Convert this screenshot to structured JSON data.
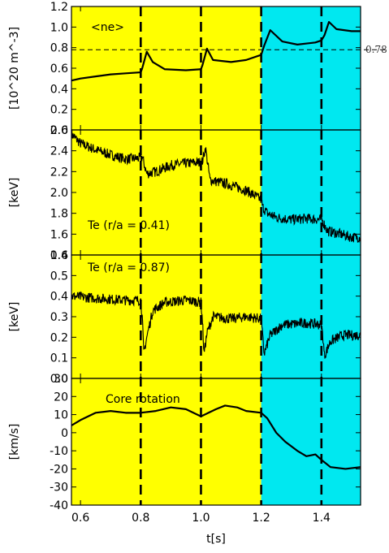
{
  "chart_data": {
    "type": "line",
    "xlabel": "t[s]",
    "xlim": [
      0.57,
      1.53
    ],
    "xticks": [
      "0.6",
      "0.8",
      "1.0",
      "1.2",
      "1.4"
    ],
    "phase_boundaries": [
      0.8,
      1.0,
      1.2,
      1.4
    ],
    "background_regions": [
      {
        "x": [
          0.57,
          1.2
        ],
        "color": "#ffff00"
      },
      {
        "x": [
          1.2,
          1.53
        ],
        "color": "#00e8f0"
      }
    ],
    "panels": [
      {
        "ylabel": "[10^20 m^-3]",
        "ylim": [
          0.0,
          1.2
        ],
        "yticks": [
          "0.0",
          "0.2",
          "0.4",
          "0.6",
          "0.8",
          "1.0",
          "1.2"
        ],
        "annotation": "<ne>",
        "reference_line": {
          "y": 0.78,
          "label": "0.78"
        },
        "noise": 0,
        "series": [
          {
            "name": "<ne>",
            "points": [
              [
                0.57,
                0.48
              ],
              [
                0.6,
                0.5
              ],
              [
                0.65,
                0.52
              ],
              [
                0.7,
                0.54
              ],
              [
                0.75,
                0.55
              ],
              [
                0.8,
                0.56
              ],
              [
                0.805,
                0.6
              ],
              [
                0.82,
                0.76
              ],
              [
                0.84,
                0.66
              ],
              [
                0.88,
                0.59
              ],
              [
                0.95,
                0.58
              ],
              [
                1.0,
                0.59
              ],
              [
                1.005,
                0.63
              ],
              [
                1.02,
                0.79
              ],
              [
                1.04,
                0.68
              ],
              [
                1.1,
                0.66
              ],
              [
                1.15,
                0.68
              ],
              [
                1.2,
                0.73
              ],
              [
                1.21,
                0.82
              ],
              [
                1.23,
                0.97
              ],
              [
                1.27,
                0.86
              ],
              [
                1.32,
                0.83
              ],
              [
                1.38,
                0.85
              ],
              [
                1.4,
                0.87
              ],
              [
                1.41,
                0.92
              ],
              [
                1.425,
                1.05
              ],
              [
                1.45,
                0.98
              ],
              [
                1.5,
                0.96
              ],
              [
                1.53,
                0.96
              ]
            ]
          }
        ]
      },
      {
        "ylabel": "[keV]",
        "ylim": [
          1.4,
          2.6
        ],
        "yticks": [
          "1.4",
          "1.6",
          "1.8",
          "2.0",
          "2.2",
          "2.4",
          "2.6"
        ],
        "annotation": "Te (r/a = 0.41)",
        "noise": 0.05,
        "series": [
          {
            "name": "Te (r/a = 0.41)",
            "points": [
              [
                0.57,
                2.56
              ],
              [
                0.6,
                2.47
              ],
              [
                0.65,
                2.41
              ],
              [
                0.7,
                2.36
              ],
              [
                0.75,
                2.32
              ],
              [
                0.8,
                2.33
              ],
              [
                0.805,
                2.34
              ],
              [
                0.82,
                2.18
              ],
              [
                0.85,
                2.2
              ],
              [
                0.9,
                2.26
              ],
              [
                0.95,
                2.28
              ],
              [
                1.0,
                2.29
              ],
              [
                1.005,
                2.3
              ],
              [
                1.015,
                2.43
              ],
              [
                1.03,
                2.12
              ],
              [
                1.1,
                2.07
              ],
              [
                1.15,
                2.02
              ],
              [
                1.2,
                1.93
              ],
              [
                1.205,
                1.86
              ],
              [
                1.22,
                1.8
              ],
              [
                1.25,
                1.76
              ],
              [
                1.3,
                1.74
              ],
              [
                1.35,
                1.75
              ],
              [
                1.4,
                1.74
              ],
              [
                1.405,
                1.72
              ],
              [
                1.42,
                1.63
              ],
              [
                1.45,
                1.61
              ],
              [
                1.5,
                1.57
              ],
              [
                1.53,
                1.57
              ]
            ]
          }
        ]
      },
      {
        "ylabel": "[keV]",
        "ylim": [
          0.0,
          0.6
        ],
        "yticks": [
          "0.0",
          "0.1",
          "0.2",
          "0.3",
          "0.4",
          "0.5",
          "0.6"
        ],
        "annotation": "Te (r/a = 0.87)",
        "noise": 0.025,
        "series": [
          {
            "name": "Te (r/a = 0.87)",
            "points": [
              [
                0.57,
                0.4
              ],
              [
                0.65,
                0.39
              ],
              [
                0.75,
                0.38
              ],
              [
                0.8,
                0.38
              ],
              [
                0.805,
                0.3
              ],
              [
                0.81,
                0.12
              ],
              [
                0.82,
                0.2
              ],
              [
                0.84,
                0.33
              ],
              [
                0.88,
                0.37
              ],
              [
                0.95,
                0.38
              ],
              [
                1.0,
                0.37
              ],
              [
                1.005,
                0.28
              ],
              [
                1.01,
                0.12
              ],
              [
                1.02,
                0.22
              ],
              [
                1.04,
                0.3
              ],
              [
                1.1,
                0.29
              ],
              [
                1.15,
                0.3
              ],
              [
                1.2,
                0.29
              ],
              [
                1.205,
                0.2
              ],
              [
                1.21,
                0.12
              ],
              [
                1.23,
                0.21
              ],
              [
                1.27,
                0.26
              ],
              [
                1.35,
                0.27
              ],
              [
                1.4,
                0.26
              ],
              [
                1.405,
                0.2
              ],
              [
                1.41,
                0.11
              ],
              [
                1.43,
                0.18
              ],
              [
                1.47,
                0.21
              ],
              [
                1.53,
                0.21
              ]
            ]
          }
        ]
      },
      {
        "ylabel": "[km/s]",
        "ylim": [
          -40,
          30
        ],
        "yticks": [
          "-40",
          "-30",
          "-20",
          "-10",
          "0",
          "10",
          "20",
          "30"
        ],
        "annotation": "Core  rotation",
        "noise": 0,
        "series": [
          {
            "name": "Core rotation",
            "points": [
              [
                0.57,
                4
              ],
              [
                0.6,
                7
              ],
              [
                0.65,
                11
              ],
              [
                0.7,
                12
              ],
              [
                0.75,
                11
              ],
              [
                0.8,
                11
              ],
              [
                0.85,
                12
              ],
              [
                0.9,
                14
              ],
              [
                0.95,
                13
              ],
              [
                1.0,
                9
              ],
              [
                1.05,
                13
              ],
              [
                1.08,
                15
              ],
              [
                1.12,
                14
              ],
              [
                1.15,
                12
              ],
              [
                1.2,
                11
              ],
              [
                1.22,
                8
              ],
              [
                1.25,
                0
              ],
              [
                1.28,
                -5
              ],
              [
                1.32,
                -10
              ],
              [
                1.35,
                -13
              ],
              [
                1.38,
                -12
              ],
              [
                1.4,
                -15
              ],
              [
                1.43,
                -19
              ],
              [
                1.48,
                -20
              ],
              [
                1.53,
                -19
              ]
            ]
          }
        ]
      }
    ]
  }
}
